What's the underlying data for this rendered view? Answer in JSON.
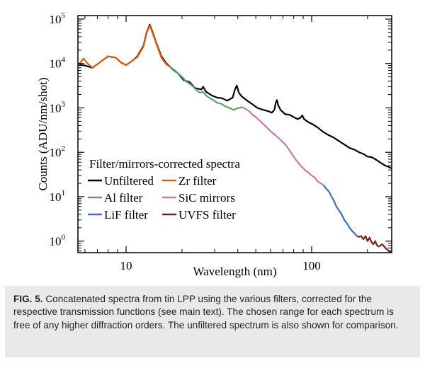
{
  "chart_data": {
    "type": "line",
    "xscale": "log",
    "yscale": "log",
    "xlim": [
      5.5,
      270
    ],
    "ylim": [
      0.55,
      120000
    ],
    "xlabel": "Wavelength (nm)",
    "ylabel": "Counts (ADU/nm/shot)",
    "x_ticks": [
      {
        "value": 10,
        "label": "10"
      },
      {
        "value": 100,
        "label": "100"
      }
    ],
    "y_ticks": [
      {
        "value": 1,
        "base": "10",
        "exp": "0"
      },
      {
        "value": 10,
        "base": "10",
        "exp": "1"
      },
      {
        "value": 100,
        "base": "10",
        "exp": "2"
      },
      {
        "value": 1000,
        "base": "10",
        "exp": "3"
      },
      {
        "value": 10000,
        "base": "10",
        "exp": "4"
      },
      {
        "value": 100000,
        "base": "10",
        "exp": "5"
      }
    ],
    "legend_title": "Filter/mirrors-corrected spectra",
    "legend_placement": "bottom-left",
    "series": [
      {
        "name": "Unfiltered",
        "color": "#000000",
        "points": [
          [
            5.5,
            9500
          ],
          [
            6.0,
            9000
          ],
          [
            6.6,
            8000
          ],
          [
            7.2,
            10500
          ],
          [
            8.0,
            14500
          ],
          [
            8.8,
            13500
          ],
          [
            9.4,
            10500
          ],
          [
            10.0,
            9200
          ],
          [
            10.8,
            11500
          ],
          [
            11.5,
            14500
          ],
          [
            12.4,
            25000
          ],
          [
            12.9,
            50000
          ],
          [
            13.4,
            75000
          ],
          [
            13.8,
            55000
          ],
          [
            14.5,
            30000
          ],
          [
            15.5,
            14500
          ],
          [
            16.5,
            10000
          ],
          [
            17.5,
            8000
          ],
          [
            19.0,
            6000
          ],
          [
            20.5,
            4200
          ],
          [
            22.0,
            3800
          ],
          [
            23.5,
            2800
          ],
          [
            25.5,
            2600
          ],
          [
            26.0,
            3000
          ],
          [
            27.0,
            2300
          ],
          [
            29.0,
            1900
          ],
          [
            31.0,
            1700
          ],
          [
            33.0,
            1650
          ],
          [
            35.0,
            1450
          ],
          [
            37.5,
            1700
          ],
          [
            38.5,
            2500
          ],
          [
            39.5,
            3200
          ],
          [
            40.5,
            2200
          ],
          [
            42.0,
            1800
          ],
          [
            45.0,
            1450
          ],
          [
            48.0,
            1200
          ],
          [
            51.0,
            1000
          ],
          [
            55.0,
            900
          ],
          [
            58.0,
            850
          ],
          [
            61.0,
            780
          ],
          [
            63.0,
            900
          ],
          [
            64.0,
            1300
          ],
          [
            65.0,
            1500
          ],
          [
            66.0,
            1150
          ],
          [
            68.0,
            900
          ],
          [
            72.0,
            720
          ],
          [
            76.0,
            700
          ],
          [
            80.0,
            620
          ],
          [
            84.0,
            560
          ],
          [
            87.0,
            600
          ],
          [
            89.0,
            680
          ],
          [
            91.0,
            560
          ],
          [
            96.0,
            480
          ],
          [
            102.0,
            420
          ],
          [
            108.0,
            360
          ],
          [
            115.0,
            290
          ],
          [
            122.0,
            250
          ],
          [
            130.0,
            220
          ],
          [
            140.0,
            180
          ],
          [
            150.0,
            150
          ],
          [
            160.0,
            125
          ],
          [
            170.0,
            115
          ],
          [
            180.0,
            100
          ],
          [
            190.0,
            92
          ],
          [
            200.0,
            80
          ],
          [
            210.0,
            78
          ],
          [
            220.0,
            70
          ],
          [
            230.0,
            62
          ],
          [
            240.0,
            55
          ],
          [
            250.0,
            50
          ],
          [
            260.0,
            47
          ],
          [
            270.0,
            43
          ]
        ]
      },
      {
        "name": "Zr filter",
        "color": "#d45f1a",
        "points": [
          [
            5.5,
            9000
          ],
          [
            5.9,
            13000
          ],
          [
            6.2,
            10000
          ],
          [
            6.6,
            8000
          ],
          [
            7.2,
            10500
          ],
          [
            8.0,
            14500
          ],
          [
            8.8,
            13500
          ],
          [
            9.4,
            10500
          ],
          [
            10.0,
            9200
          ],
          [
            10.8,
            11500
          ],
          [
            11.5,
            14000
          ],
          [
            12.4,
            24000
          ],
          [
            12.9,
            48000
          ],
          [
            13.4,
            72000
          ],
          [
            13.8,
            52000
          ],
          [
            14.5,
            29000
          ],
          [
            15.5,
            13500
          ],
          [
            16.5,
            9500
          ],
          [
            17.2,
            8500
          ]
        ]
      },
      {
        "name": "Al filter",
        "color": "#5f9e6e",
        "points": [
          [
            17.2,
            8500
          ],
          [
            18.0,
            7000
          ],
          [
            19.0,
            6000
          ],
          [
            20.0,
            5000
          ],
          [
            21.0,
            4000
          ],
          [
            22.0,
            3500
          ],
          [
            23.0,
            3000
          ],
          [
            24.0,
            2500
          ],
          [
            25.0,
            2200
          ],
          [
            26.0,
            2300
          ],
          [
            27.0,
            1900
          ],
          [
            28.0,
            1700
          ],
          [
            29.5,
            1500
          ],
          [
            31.0,
            1300
          ],
          [
            32.5,
            1250
          ],
          [
            34.0,
            1100
          ],
          [
            36.0,
            1000
          ],
          [
            38.0,
            900
          ],
          [
            40.0,
            1000
          ],
          [
            41.0,
            1000
          ],
          [
            42.0,
            1050
          ]
        ]
      },
      {
        "name": "SiC mirrors",
        "color": "#c27ab0",
        "points": [
          [
            42.0,
            1050
          ],
          [
            44.0,
            950
          ],
          [
            46.0,
            850
          ],
          [
            48.0,
            700
          ],
          [
            50.0,
            620
          ],
          [
            53.0,
            500
          ],
          [
            56.0,
            400
          ],
          [
            60.0,
            300
          ],
          [
            64.0,
            240
          ],
          [
            68.0,
            190
          ],
          [
            72.0,
            150
          ],
          [
            76.0,
            110
          ],
          [
            80.0,
            80
          ],
          [
            84.0,
            60
          ],
          [
            88.0,
            48
          ],
          [
            92.0,
            40
          ],
          [
            96.0,
            35
          ],
          [
            100.0,
            30
          ],
          [
            104.0,
            27
          ],
          [
            108.0,
            22
          ],
          [
            112.0,
            20
          ],
          [
            116.0,
            18
          ]
        ]
      },
      {
        "name": "LiF filter",
        "color": "#3b6fb6",
        "points": [
          [
            116.0,
            18
          ],
          [
            120.0,
            15
          ],
          [
            124.0,
            13
          ],
          [
            128.0,
            10
          ],
          [
            132.0,
            8
          ],
          [
            136.0,
            6
          ],
          [
            140.0,
            5
          ],
          [
            145.0,
            4
          ],
          [
            150.0,
            3
          ],
          [
            155.0,
            2.5
          ],
          [
            160.0,
            2.0
          ],
          [
            165.0,
            1.7
          ],
          [
            170.0,
            1.5
          ],
          [
            175.0,
            1.3
          ]
        ]
      },
      {
        "name": "UVFS filter",
        "color": "#7a1f1c",
        "points": [
          [
            175.0,
            1.3
          ],
          [
            180.0,
            1.25
          ],
          [
            185.0,
            1.3
          ],
          [
            190.0,
            1.1
          ],
          [
            195.0,
            1.3
          ],
          [
            200.0,
            1.0
          ],
          [
            205.0,
            1.2
          ],
          [
            210.0,
            0.95
          ],
          [
            215.0,
            0.85
          ],
          [
            220.0,
            1.0
          ],
          [
            225.0,
            0.8
          ],
          [
            230.0,
            0.75
          ],
          [
            240.0,
            0.85
          ],
          [
            250.0,
            0.7
          ],
          [
            260.0,
            0.6
          ],
          [
            270.0,
            0.55
          ]
        ]
      }
    ]
  },
  "caption": {
    "label": "FIG. 5.",
    "text": "Concatenated spectra from tin LPP using the various filters, corrected for the respective transmission functions (see main text). The chosen range for each spectrum is free of any higher diffraction orders. The unfiltered spectrum is also shown for comparison."
  }
}
